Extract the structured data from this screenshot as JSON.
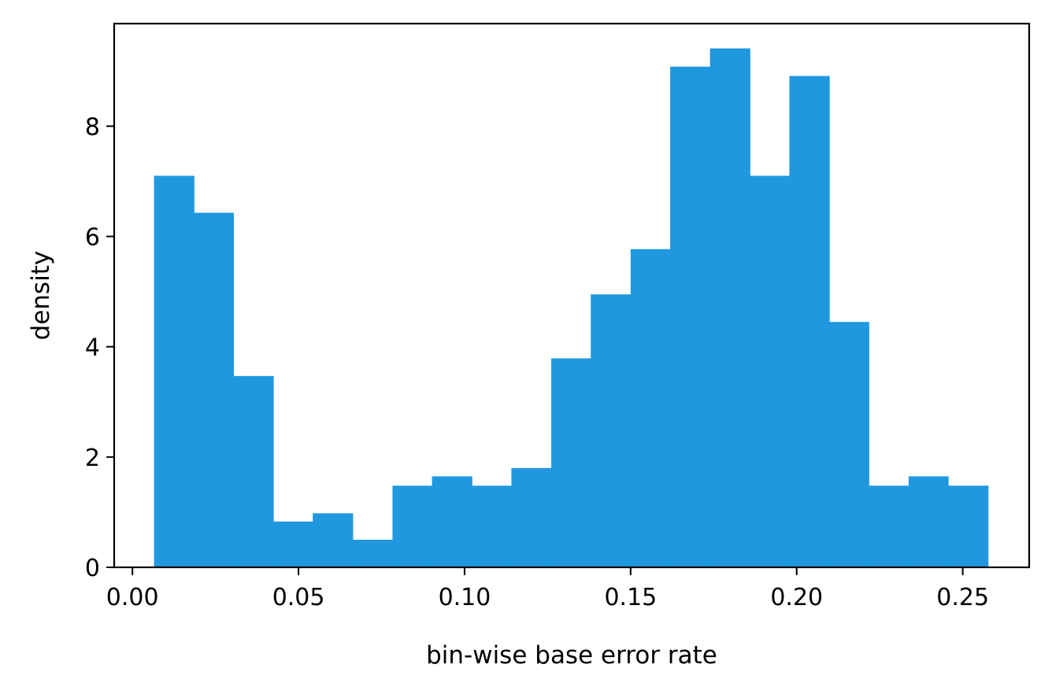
{
  "chart_data": {
    "type": "bar",
    "title": "",
    "xlabel": "bin-wise base error rate",
    "ylabel": "density",
    "xlim": [
      -0.0055,
      0.27
    ],
    "ylim": [
      0,
      9.86
    ],
    "xticks": [
      0.0,
      0.05,
      0.1,
      0.15,
      0.2,
      0.25
    ],
    "xtick_labels": [
      "0.00",
      "0.05",
      "0.10",
      "0.15",
      "0.20",
      "0.25"
    ],
    "yticks": [
      0,
      2,
      4,
      6,
      8
    ],
    "ytick_labels": [
      "0",
      "2",
      "4",
      "6",
      "8"
    ],
    "bin_edges": [
      0.0065,
      0.0185,
      0.0304,
      0.0424,
      0.0543,
      0.0663,
      0.0783,
      0.0902,
      0.1022,
      0.1141,
      0.1261,
      0.138,
      0.15,
      0.1619,
      0.1739,
      0.1859,
      0.1978,
      0.2098,
      0.2217,
      0.2337,
      0.2456,
      0.2576
    ],
    "values": [
      7.1,
      6.43,
      3.47,
      0.83,
      0.98,
      0.5,
      1.48,
      1.65,
      1.48,
      1.8,
      3.79,
      4.95,
      5.77,
      9.08,
      9.41,
      7.1,
      8.91,
      4.45,
      1.48,
      1.65,
      1.48
    ],
    "bar_color": "#1f98df",
    "grid": false,
    "legend": "none"
  }
}
